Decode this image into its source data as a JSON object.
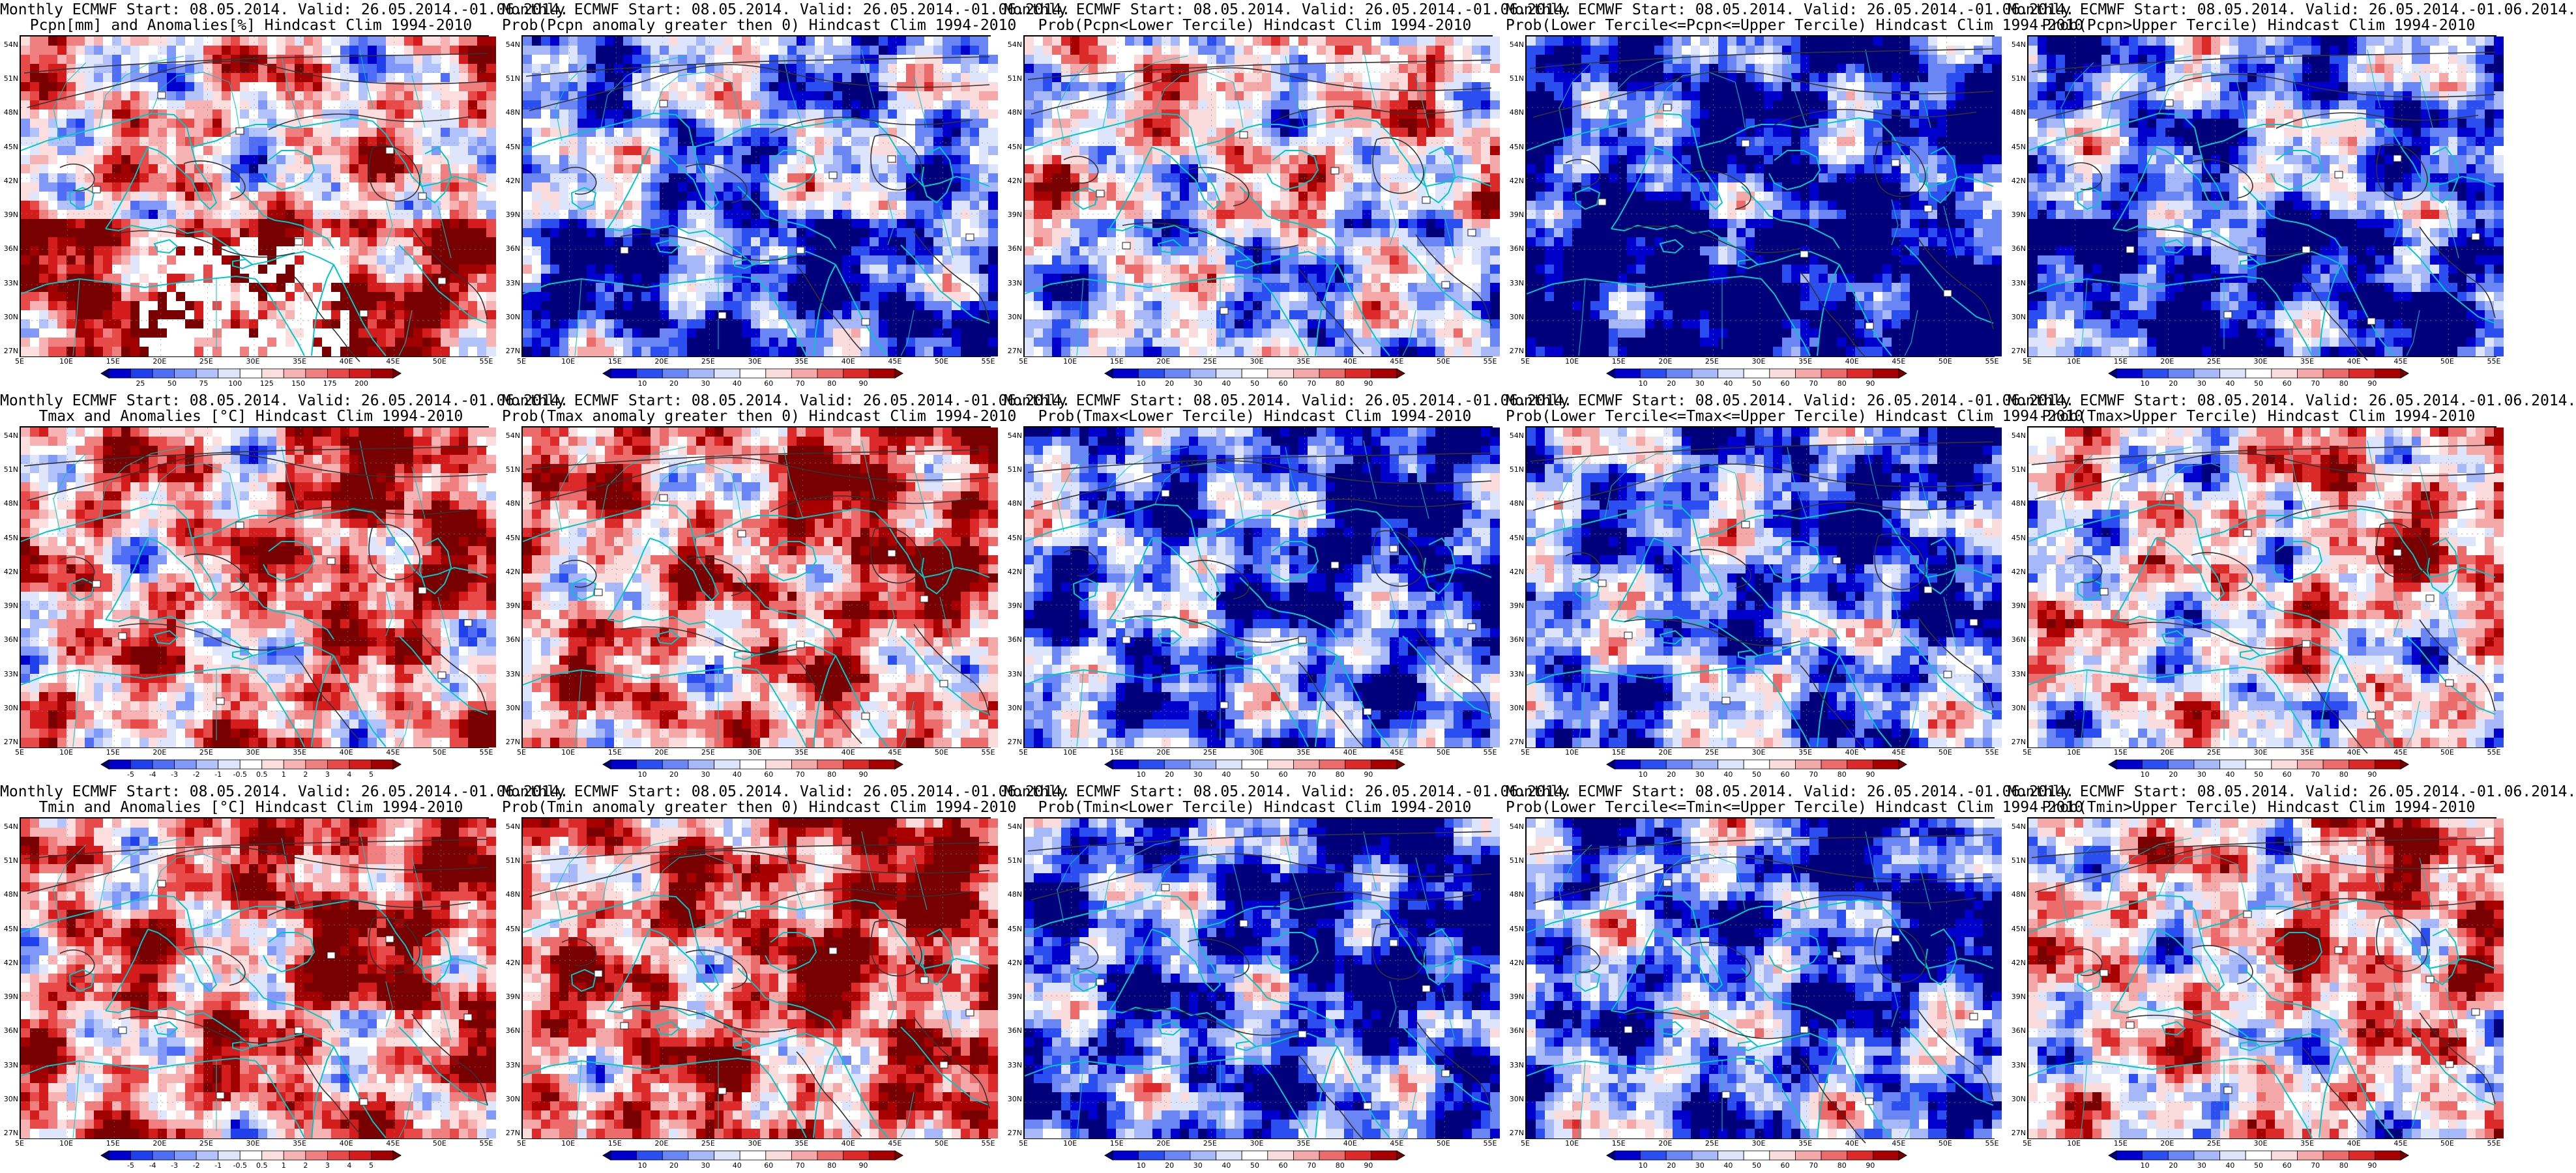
{
  "figure": {
    "columns": 5,
    "rows": 3,
    "lat_ticks": [
      "54N",
      "51N",
      "48N",
      "45N",
      "42N",
      "39N",
      "36N",
      "33N",
      "30N",
      "27N"
    ],
    "lon_ticks": [
      "5E",
      "10E",
      "15E",
      "20E",
      "25E",
      "30E",
      "35E",
      "40E",
      "45E",
      "50E",
      "55E"
    ],
    "palettes": {
      "diverging": [
        "#00007a",
        "#0000cc",
        "#2040ee",
        "#4f6ef5",
        "#8098f8",
        "#b2c2fa",
        "#dfe6fc",
        "#ffffff",
        "#fcdede",
        "#f7b3b3",
        "#f08080",
        "#e84a4a",
        "#d41c1c",
        "#a00000",
        "#780000"
      ],
      "prob": [
        "#00007a",
        "#0000cc",
        "#2b4ef0",
        "#6a86f5",
        "#a7b8f9",
        "#dde5fc",
        "#ffffff",
        "#fbdcdc",
        "#f4a8a8",
        "#ec6b6b",
        "#dc2a2a",
        "#a80000",
        "#780000"
      ]
    },
    "contour_color": "#333333",
    "coastline_color": "#00c8c8"
  },
  "panels": [
    {
      "line1": "Monthly ECMWF Start: 08.05.2014. Valid: 26.05.2014.-01.06.2014.",
      "line2": "Pcpn[mm] and Anomalies[%] Hindcast Clim 1994-2010",
      "variable": "pcpn-anomaly",
      "scale": "diverging",
      "cb": [
        "25",
        "50",
        "75",
        "100",
        "125",
        "150",
        "175",
        "200"
      ],
      "bias": 0.15
    },
    {
      "line1": "Monthly ECMWF Start: 08.05.2014. Valid: 26.05.2014.-01.06.2014.",
      "line2": "Prob(Pcpn anomaly greater then 0) Hindcast Clim 1994-2010",
      "variable": "pcpn-prob-positive",
      "scale": "prob",
      "cb": [
        "10",
        "20",
        "30",
        "40",
        "60",
        "70",
        "80",
        "90"
      ],
      "bias": -0.35
    },
    {
      "line1": "Monthly ECMWF Start: 08.05.2014. Valid: 26.05.2014.-01.06.2014.",
      "line2": "Prob(Pcpn<Lower Tercile) Hindcast Clim 1994-2010",
      "variable": "pcpn-prob-lower",
      "scale": "prob",
      "cb": [
        "10",
        "20",
        "30",
        "40",
        "50",
        "60",
        "70",
        "80",
        "90"
      ],
      "bias": 0.1
    },
    {
      "line1": "Monthly ECMWF Start: 08.05.2014. Valid: 26.05.2014.-01.06.2014.",
      "line2": "Prob(Lower Tercile<=Pcpn<=Upper Tercile) Hindcast Clim 1994-2010",
      "variable": "pcpn-prob-middle",
      "scale": "prob",
      "cb": [
        "10",
        "20",
        "30",
        "40",
        "50",
        "60",
        "70",
        "80",
        "90"
      ],
      "bias": -0.75
    },
    {
      "line1": "Monthly ECMWF Start: 08.05.2014. Valid: 26.05.2014.-01.06.2014.",
      "line2": "Prob(Pcpn>Upper Tercile) Hindcast Clim 1994-2010",
      "variable": "pcpn-prob-upper",
      "scale": "prob",
      "cb": [
        "10",
        "20",
        "30",
        "40",
        "50",
        "60",
        "70",
        "80",
        "90"
      ],
      "bias": -0.45
    },
    {
      "line1": "Monthly ECMWF Start: 08.05.2014. Valid: 26.05.2014.-01.06.2014.",
      "line2": "Tmax and Anomalies [°C] Hindcast Clim 1994-2010",
      "variable": "tmax-anomaly",
      "scale": "diverging",
      "cb": [
        "-5",
        "-4",
        "-3",
        "-2",
        "-1",
        "-0.5",
        "0.5",
        "1",
        "2",
        "3",
        "4",
        "5"
      ],
      "bias": 0.3
    },
    {
      "line1": "Monthly ECMWF Start: 08.05.2014. Valid: 26.05.2014.-01.06.2014.",
      "line2": "Prob(Tmax anomaly greater then 0) Hindcast Clim 1994-2010",
      "variable": "tmax-prob-positive",
      "scale": "prob",
      "cb": [
        "10",
        "20",
        "30",
        "40",
        "60",
        "70",
        "80",
        "90"
      ],
      "bias": 0.35
    },
    {
      "line1": "Monthly ECMWF Start: 08.05.2014. Valid: 26.05.2014.-01.06.2014.",
      "line2": "Prob(Tmax<Lower Tercile) Hindcast Clim 1994-2010",
      "variable": "tmax-prob-lower",
      "scale": "prob",
      "cb": [
        "10",
        "20",
        "30",
        "40",
        "50",
        "60",
        "70",
        "80",
        "90"
      ],
      "bias": -0.5
    },
    {
      "line1": "Monthly ECMWF Start: 08.05.2014. Valid: 26.05.2014.-01.06.2014.",
      "line2": "Prob(Lower Tercile<=Tmax<=Upper Tercile) Hindcast Clim 1994-2010",
      "variable": "tmax-prob-middle",
      "scale": "prob",
      "cb": [
        "10",
        "20",
        "30",
        "40",
        "50",
        "60",
        "70",
        "80",
        "90"
      ],
      "bias": -0.4
    },
    {
      "line1": "Monthly ECMWF Start: 08.05.2014. Valid: 26.05.2014.-01.06.2014.",
      "line2": "Prob(Tmax>Upper Tercile) Hindcast Clim 1994-2010",
      "variable": "tmax-prob-upper",
      "scale": "prob",
      "cb": [
        "10",
        "20",
        "30",
        "40",
        "50",
        "60",
        "70",
        "80",
        "90"
      ],
      "bias": 0.0
    },
    {
      "line1": "Monthly ECMWF Start: 08.05.2014. Valid: 26.05.2014.-01.06.2014.",
      "line2": "Tmin and Anomalies [°C] Hindcast Clim 1994-2010",
      "variable": "tmin-anomaly",
      "scale": "diverging",
      "cb": [
        "-5",
        "-4",
        "-3",
        "-2",
        "-1",
        "-0.5",
        "0.5",
        "1",
        "2",
        "3",
        "4",
        "5"
      ],
      "bias": 0.35
    },
    {
      "line1": "Monthly ECMWF Start: 08.05.2014. Valid: 26.05.2014.-01.06.2014.",
      "line2": "Prob(Tmin anomaly greater then 0) Hindcast Clim 1994-2010",
      "variable": "tmin-prob-positive",
      "scale": "prob",
      "cb": [
        "10",
        "20",
        "30",
        "40",
        "60",
        "70",
        "80",
        "90"
      ],
      "bias": 0.45
    },
    {
      "line1": "Monthly ECMWF Start: 08.05.2014. Valid: 26.05.2014.-01.06.2014.",
      "line2": "Prob(Tmin<Lower Tercile) Hindcast Clim 1994-2010",
      "variable": "tmin-prob-lower",
      "scale": "prob",
      "cb": [
        "10",
        "20",
        "30",
        "40",
        "50",
        "60",
        "70",
        "80",
        "90"
      ],
      "bias": -0.55
    },
    {
      "line1": "Monthly ECMWF Start: 08.05.2014. Valid: 26.05.2014.-01.06.2014.",
      "line2": "Prob(Lower Tercile<=Tmin<=Upper Tercile) Hindcast Clim 1994-2010",
      "variable": "tmin-prob-middle",
      "scale": "prob",
      "cb": [
        "10",
        "20",
        "30",
        "40",
        "50",
        "60",
        "70",
        "80",
        "90"
      ],
      "bias": -0.45
    },
    {
      "line1": "Monthly ECMWF Start: 08.05.2014. Valid: 26.05.2014.-01.06.2014.",
      "line2": "Prob(Tmin>Upper Tercile) Hindcast Clim 1994-2010",
      "variable": "tmin-prob-upper",
      "scale": "prob",
      "cb": [
        "10",
        "20",
        "30",
        "40",
        "50",
        "60",
        "70",
        "80",
        "90"
      ],
      "bias": 0.1
    }
  ]
}
